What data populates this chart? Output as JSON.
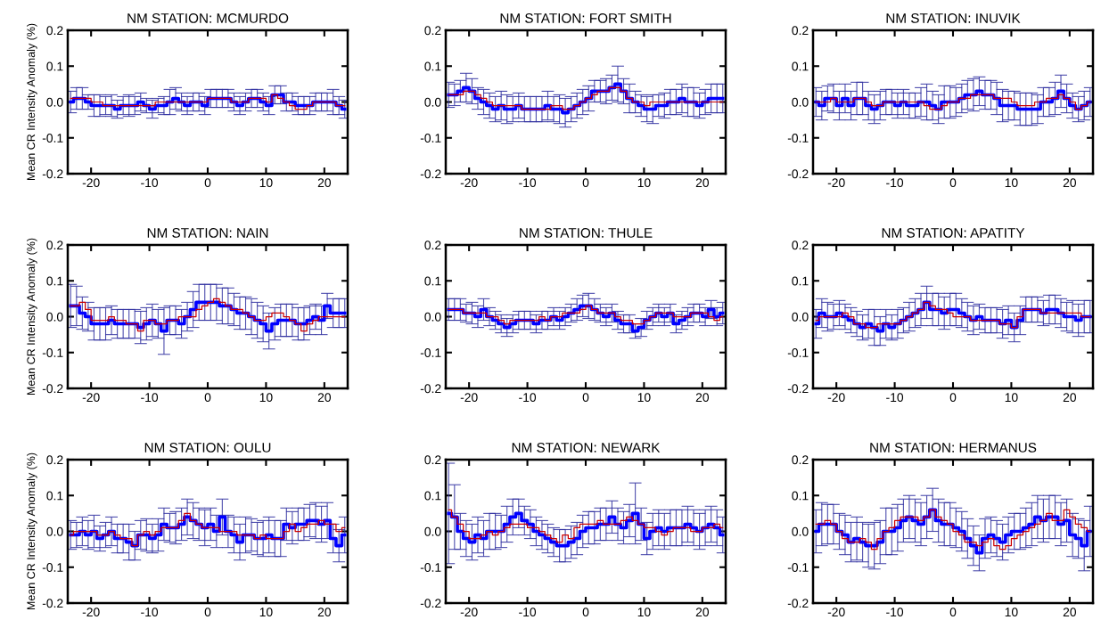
{
  "chart_data": [
    {
      "type": "step",
      "title": "NM STATION: MCMURDO",
      "ylabel": "Mean CR Intensity Anomaly (%)",
      "xlim": [
        -24,
        24
      ],
      "ylim": [
        -0.2,
        0.2
      ],
      "xticks": [
        -20,
        -10,
        0,
        10,
        20
      ],
      "yticks": [
        {
          "value": -0.2,
          "label": "-0.2"
        },
        {
          "value": -0.1,
          "label": "-0.1"
        },
        {
          "value": 0,
          "label": "0.0"
        },
        {
          "value": 0.1,
          "label": "0.1"
        },
        {
          "value": 0.2,
          "label": "0.2"
        }
      ],
      "grid": false,
      "legend": false,
      "x": [
        -23.5,
        -22.5,
        -21.5,
        -20.5,
        -19.5,
        -18.5,
        -17.5,
        -16.5,
        -15.5,
        -14.5,
        -13.5,
        -12.5,
        -11.5,
        -10.5,
        -9.5,
        -8.5,
        -7.5,
        -6.5,
        -5.5,
        -4.5,
        -3.5,
        -2.5,
        -1.5,
        -0.5,
        0.5,
        1.5,
        2.5,
        3.5,
        4.5,
        5.5,
        6.5,
        7.5,
        8.5,
        9.5,
        10.5,
        11.5,
        12.5,
        13.5,
        14.5,
        15.5,
        16.5,
        17.5,
        18.5,
        19.5,
        20.5,
        21.5,
        22.5,
        23.5
      ],
      "series": [
        {
          "color": "#0000ff",
          "values": [
            0.0,
            0.01,
            0.01,
            0.0,
            -0.01,
            -0.01,
            -0.01,
            -0.01,
            -0.02,
            -0.01,
            -0.01,
            -0.01,
            0.0,
            -0.01,
            -0.02,
            -0.01,
            -0.01,
            0.0,
            0.01,
            0.0,
            -0.01,
            0.0,
            0.0,
            -0.01,
            0.01,
            0.01,
            0.01,
            0.01,
            0.0,
            -0.01,
            0.0,
            0.01,
            0.01,
            0.0,
            -0.01,
            0.02,
            0.02,
            0.0,
            0.0,
            -0.01,
            -0.01,
            -0.01,
            0.0,
            0.0,
            0.0,
            0.0,
            -0.01,
            -0.02
          ],
          "errors": [
            0.03,
            0.03,
            0.03,
            0.02,
            0.03,
            0.03,
            0.025,
            0.03,
            0.025,
            0.025,
            0.03,
            0.025,
            0.025,
            0.02,
            0.025,
            0.02,
            0.025,
            0.035,
            0.03,
            0.025,
            0.025,
            0.025,
            0.025,
            0.025,
            0.025,
            0.025,
            0.025,
            0.025,
            0.025,
            0.025,
            0.025,
            0.025,
            0.025,
            0.025,
            0.025,
            0.025,
            0.025,
            0.025,
            0.025,
            0.025,
            0.025,
            0.025,
            0.025,
            0.025,
            0.025,
            0.035,
            0.025,
            0.025
          ]
        },
        {
          "color": "#cc0000",
          "values": [
            0.01,
            0.01,
            0.01,
            0.01,
            0.0,
            0.0,
            -0.01,
            -0.01,
            -0.01,
            -0.01,
            -0.01,
            -0.01,
            -0.01,
            -0.01,
            -0.01,
            0.0,
            0.0,
            0.0,
            0.0,
            0.0,
            0.0,
            0.0,
            0.0,
            0.0,
            0.01,
            0.01,
            0.01,
            0.01,
            0.0,
            0.0,
            0.0,
            0.01,
            0.01,
            0.01,
            0.0,
            0.02,
            0.01,
            0.0,
            -0.01,
            -0.02,
            -0.02,
            -0.01,
            0.0,
            0.0,
            0.0,
            0.0,
            -0.01,
            -0.01
          ]
        }
      ]
    },
    {
      "type": "step",
      "title": "NM STATION: FORT SMITH",
      "xlim": [
        -24,
        24
      ],
      "ylim": [
        -0.2,
        0.2
      ],
      "xticks": [
        -20,
        -10,
        0,
        10,
        20
      ],
      "yticks": [
        {
          "value": -0.2,
          "label": "-0.2"
        },
        {
          "value": -0.1,
          "label": "-0.1"
        },
        {
          "value": 0,
          "label": "0.0"
        },
        {
          "value": 0.1,
          "label": "0.1"
        },
        {
          "value": 0.2,
          "label": "0.2"
        }
      ],
      "grid": false,
      "legend": false,
      "x": [
        -23.5,
        -22.5,
        -21.5,
        -20.5,
        -19.5,
        -18.5,
        -17.5,
        -16.5,
        -15.5,
        -14.5,
        -13.5,
        -12.5,
        -11.5,
        -10.5,
        -9.5,
        -8.5,
        -7.5,
        -6.5,
        -5.5,
        -4.5,
        -3.5,
        -2.5,
        -1.5,
        -0.5,
        0.5,
        1.5,
        2.5,
        3.5,
        4.5,
        5.5,
        6.5,
        7.5,
        8.5,
        9.5,
        10.5,
        11.5,
        12.5,
        13.5,
        14.5,
        15.5,
        16.5,
        17.5,
        18.5,
        19.5,
        20.5,
        21.5,
        22.5,
        23.5
      ],
      "series": [
        {
          "color": "#0000ff",
          "values": [
            0.02,
            0.02,
            0.03,
            0.04,
            0.03,
            0.01,
            0.0,
            -0.01,
            -0.02,
            -0.01,
            -0.02,
            -0.02,
            -0.01,
            -0.02,
            -0.02,
            -0.02,
            -0.02,
            -0.01,
            -0.02,
            -0.02,
            -0.03,
            -0.02,
            -0.01,
            0.0,
            0.01,
            0.03,
            0.03,
            0.03,
            0.04,
            0.05,
            0.03,
            0.01,
            0.0,
            -0.01,
            -0.02,
            -0.02,
            -0.01,
            -0.01,
            0.0,
            0.0,
            0.01,
            0.0,
            0.0,
            -0.01,
            0.0,
            0.01,
            0.01,
            0.01
          ],
          "errors": [
            0.035,
            0.03,
            0.03,
            0.04,
            0.035,
            0.03,
            0.035,
            0.035,
            0.035,
            0.04,
            0.04,
            0.035,
            0.035,
            0.035,
            0.035,
            0.035,
            0.035,
            0.04,
            0.035,
            0.04,
            0.04,
            0.035,
            0.035,
            0.035,
            0.035,
            0.03,
            0.03,
            0.035,
            0.035,
            0.05,
            0.035,
            0.04,
            0.03,
            0.03,
            0.035,
            0.04,
            0.03,
            0.035,
            0.035,
            0.035,
            0.04,
            0.04,
            0.04,
            0.035,
            0.035,
            0.04,
            0.04,
            0.04
          ]
        },
        {
          "color": "#cc0000",
          "values": [
            0.02,
            0.02,
            0.02,
            0.03,
            0.03,
            0.02,
            0.01,
            0.0,
            -0.01,
            -0.01,
            -0.01,
            -0.01,
            -0.01,
            -0.02,
            -0.02,
            -0.02,
            -0.02,
            -0.02,
            -0.01,
            -0.01,
            -0.02,
            -0.02,
            -0.01,
            0.0,
            0.01,
            0.02,
            0.03,
            0.03,
            0.04,
            0.04,
            0.03,
            0.01,
            0.0,
            0.0,
            -0.01,
            0.0,
            0.0,
            0.0,
            0.0,
            0.0,
            0.0,
            0.0,
            0.0,
            0.0,
            0.0,
            0.0,
            0.0,
            0.0
          ]
        }
      ]
    },
    {
      "type": "step",
      "title": "NM STATION: INUVIK",
      "xlim": [
        -24,
        24
      ],
      "ylim": [
        -0.2,
        0.2
      ],
      "xticks": [
        -20,
        -10,
        0,
        10,
        20
      ],
      "yticks": [
        {
          "value": -0.2,
          "label": "-0.2"
        },
        {
          "value": -0.1,
          "label": "-0.1"
        },
        {
          "value": 0,
          "label": "0.0"
        },
        {
          "value": 0.1,
          "label": "0.1"
        },
        {
          "value": 0.2,
          "label": "0.2"
        }
      ],
      "grid": false,
      "legend": false,
      "x": [
        -23.5,
        -22.5,
        -21.5,
        -20.5,
        -19.5,
        -18.5,
        -17.5,
        -16.5,
        -15.5,
        -14.5,
        -13.5,
        -12.5,
        -11.5,
        -10.5,
        -9.5,
        -8.5,
        -7.5,
        -6.5,
        -5.5,
        -4.5,
        -3.5,
        -2.5,
        -1.5,
        -0.5,
        0.5,
        1.5,
        2.5,
        3.5,
        4.5,
        5.5,
        6.5,
        7.5,
        8.5,
        9.5,
        10.5,
        11.5,
        12.5,
        13.5,
        14.5,
        15.5,
        16.5,
        17.5,
        18.5,
        19.5,
        20.5,
        21.5,
        22.5,
        23.5
      ],
      "series": [
        {
          "color": "#0000ff",
          "values": [
            0.0,
            -0.01,
            0.01,
            0.01,
            -0.01,
            0.01,
            -0.01,
            0.01,
            0.01,
            -0.01,
            -0.02,
            -0.01,
            0.0,
            0.0,
            -0.01,
            0.0,
            -0.01,
            -0.01,
            0.0,
            0.0,
            -0.01,
            -0.02,
            0.0,
            0.0,
            0.0,
            0.01,
            0.02,
            0.02,
            0.03,
            0.02,
            0.02,
            0.01,
            -0.01,
            -0.01,
            -0.01,
            -0.02,
            -0.02,
            -0.02,
            -0.02,
            0.0,
            0.0,
            0.01,
            0.03,
            0.01,
            -0.01,
            -0.02,
            -0.01,
            0.0
          ],
          "errors": [
            0.04,
            0.04,
            0.035,
            0.04,
            0.04,
            0.04,
            0.04,
            0.045,
            0.045,
            0.04,
            0.04,
            0.04,
            0.035,
            0.035,
            0.035,
            0.035,
            0.035,
            0.035,
            0.04,
            0.05,
            0.04,
            0.04,
            0.045,
            0.045,
            0.04,
            0.04,
            0.04,
            0.045,
            0.04,
            0.04,
            0.04,
            0.045,
            0.045,
            0.04,
            0.04,
            0.045,
            0.045,
            0.045,
            0.04,
            0.04,
            0.04,
            0.045,
            0.045,
            0.04,
            0.035,
            0.035,
            0.04,
            0.04
          ]
        },
        {
          "color": "#cc0000",
          "values": [
            0.0,
            0.0,
            0.0,
            0.01,
            0.0,
            0.0,
            0.0,
            0.01,
            0.01,
            0.0,
            -0.01,
            -0.01,
            0.0,
            0.0,
            0.0,
            0.0,
            0.0,
            0.0,
            0.0,
            -0.01,
            -0.02,
            -0.02,
            -0.01,
            0.0,
            0.0,
            0.01,
            0.01,
            0.02,
            0.02,
            0.02,
            0.02,
            0.01,
            0.01,
            0.01,
            0.0,
            -0.01,
            -0.01,
            -0.01,
            0.0,
            0.0,
            0.01,
            0.01,
            0.02,
            0.01,
            0.0,
            -0.02,
            -0.01,
            0.0
          ]
        }
      ]
    },
    {
      "type": "step",
      "title": "NM STATION: NAIN",
      "ylabel": "Mean CR Intensity Anomaly (%)",
      "xlim": [
        -24,
        24
      ],
      "ylim": [
        -0.2,
        0.2
      ],
      "xticks": [
        -20,
        -10,
        0,
        10,
        20
      ],
      "yticks": [
        {
          "value": -0.2,
          "label": "-0.2"
        },
        {
          "value": -0.1,
          "label": "-0.1"
        },
        {
          "value": 0,
          "label": "0.0"
        },
        {
          "value": 0.1,
          "label": "0.1"
        },
        {
          "value": 0.2,
          "label": "0.2"
        }
      ],
      "grid": false,
      "legend": false,
      "x": [
        -23.5,
        -22.5,
        -21.5,
        -20.5,
        -19.5,
        -18.5,
        -17.5,
        -16.5,
        -15.5,
        -14.5,
        -13.5,
        -12.5,
        -11.5,
        -10.5,
        -9.5,
        -8.5,
        -7.5,
        -6.5,
        -5.5,
        -4.5,
        -3.5,
        -2.5,
        -1.5,
        -0.5,
        0.5,
        1.5,
        2.5,
        3.5,
        4.5,
        5.5,
        6.5,
        7.5,
        8.5,
        9.5,
        10.5,
        11.5,
        12.5,
        13.5,
        14.5,
        15.5,
        16.5,
        17.5,
        18.5,
        19.5,
        20.5,
        21.5,
        22.5,
        23.5
      ],
      "series": [
        {
          "color": "#0000ff",
          "values": [
            0.03,
            0.03,
            0.01,
            0.0,
            -0.02,
            -0.02,
            -0.02,
            -0.01,
            -0.02,
            -0.02,
            -0.02,
            -0.02,
            -0.03,
            -0.02,
            -0.01,
            -0.02,
            -0.04,
            -0.01,
            -0.01,
            -0.02,
            0.0,
            0.02,
            0.04,
            0.04,
            0.04,
            0.04,
            0.03,
            0.03,
            0.02,
            0.01,
            0.01,
            0.0,
            -0.01,
            -0.02,
            -0.04,
            -0.02,
            -0.01,
            -0.01,
            -0.01,
            -0.02,
            -0.02,
            -0.01,
            0.0,
            -0.01,
            0.03,
            0.01,
            0.01,
            0.01
          ],
          "errors": [
            0.06,
            0.055,
            0.045,
            0.04,
            0.045,
            0.045,
            0.045,
            0.04,
            0.04,
            0.04,
            0.04,
            0.04,
            0.045,
            0.045,
            0.045,
            0.04,
            0.065,
            0.04,
            0.04,
            0.04,
            0.04,
            0.05,
            0.05,
            0.05,
            0.05,
            0.05,
            0.05,
            0.05,
            0.045,
            0.045,
            0.045,
            0.05,
            0.05,
            0.05,
            0.05,
            0.045,
            0.045,
            0.045,
            0.045,
            0.045,
            0.045,
            0.04,
            0.035,
            0.04,
            0.035,
            0.04,
            0.04,
            0.04
          ]
        },
        {
          "color": "#cc0000",
          "values": [
            0.03,
            0.03,
            0.04,
            0.02,
            -0.01,
            -0.01,
            -0.01,
            0.0,
            -0.01,
            -0.01,
            -0.02,
            -0.02,
            -0.04,
            -0.01,
            -0.01,
            -0.02,
            -0.02,
            -0.01,
            -0.01,
            0.0,
            0.0,
            0.0,
            0.02,
            0.03,
            0.04,
            0.05,
            0.04,
            0.03,
            0.02,
            0.02,
            0.01,
            0.0,
            -0.01,
            -0.01,
            0.0,
            0.01,
            0.01,
            0.0,
            -0.01,
            -0.02,
            -0.04,
            -0.02,
            -0.01,
            0.0,
            0.0,
            0.0,
            0.0,
            0.0
          ]
        }
      ]
    },
    {
      "type": "step",
      "title": "NM STATION: THULE",
      "xlim": [
        -24,
        24
      ],
      "ylim": [
        -0.2,
        0.2
      ],
      "xticks": [
        -20,
        -10,
        0,
        10,
        20
      ],
      "yticks": [
        {
          "value": -0.2,
          "label": "-0.2"
        },
        {
          "value": -0.1,
          "label": "-0.1"
        },
        {
          "value": 0,
          "label": "0.0"
        },
        {
          "value": 0.1,
          "label": "0.1"
        },
        {
          "value": 0.2,
          "label": "0.2"
        }
      ],
      "grid": false,
      "legend": false,
      "x": [
        -23.5,
        -22.5,
        -21.5,
        -20.5,
        -19.5,
        -18.5,
        -17.5,
        -16.5,
        -15.5,
        -14.5,
        -13.5,
        -12.5,
        -11.5,
        -10.5,
        -9.5,
        -8.5,
        -7.5,
        -6.5,
        -5.5,
        -4.5,
        -3.5,
        -2.5,
        -1.5,
        -0.5,
        0.5,
        1.5,
        2.5,
        3.5,
        4.5,
        5.5,
        6.5,
        7.5,
        8.5,
        9.5,
        10.5,
        11.5,
        12.5,
        13.5,
        14.5,
        15.5,
        16.5,
        17.5,
        18.5,
        19.5,
        20.5,
        21.5,
        22.5,
        23.5
      ],
      "series": [
        {
          "color": "#0000ff",
          "values": [
            0.02,
            0.02,
            0.02,
            0.01,
            0.01,
            0.0,
            0.02,
            0.0,
            -0.01,
            -0.02,
            -0.03,
            -0.02,
            -0.01,
            -0.01,
            -0.01,
            -0.02,
            -0.01,
            -0.01,
            0.0,
            -0.01,
            0.0,
            0.01,
            0.02,
            0.03,
            0.03,
            0.02,
            0.01,
            0.0,
            0.01,
            -0.01,
            -0.02,
            -0.02,
            -0.04,
            -0.03,
            -0.01,
            0.0,
            0.01,
            0.0,
            0.01,
            -0.02,
            -0.01,
            0.0,
            0.01,
            0.01,
            0.0,
            0.02,
            0.0,
            0.01
          ],
          "errors": [
            0.03,
            0.03,
            0.03,
            0.025,
            0.03,
            0.03,
            0.03,
            0.025,
            0.025,
            0.025,
            0.025,
            0.025,
            0.025,
            0.025,
            0.025,
            0.025,
            0.025,
            0.025,
            0.025,
            0.025,
            0.025,
            0.025,
            0.03,
            0.03,
            0.035,
            0.03,
            0.025,
            0.025,
            0.025,
            0.025,
            0.025,
            0.025,
            0.02,
            0.025,
            0.025,
            0.025,
            0.025,
            0.025,
            0.025,
            0.025,
            0.025,
            0.025,
            0.025,
            0.025,
            0.025,
            0.025,
            0.025,
            0.03
          ]
        },
        {
          "color": "#cc0000",
          "values": [
            0.02,
            0.02,
            0.02,
            0.01,
            0.01,
            0.01,
            0.01,
            0.0,
            0.0,
            -0.01,
            -0.02,
            -0.01,
            -0.01,
            -0.01,
            -0.01,
            -0.01,
            0.0,
            -0.01,
            0.0,
            0.0,
            0.01,
            0.01,
            0.01,
            0.02,
            0.03,
            0.02,
            0.01,
            0.01,
            0.01,
            0.0,
            -0.01,
            -0.01,
            -0.02,
            -0.02,
            -0.01,
            0.0,
            0.01,
            0.01,
            0.01,
            0.0,
            0.0,
            0.0,
            0.01,
            0.01,
            0.01,
            0.0,
            -0.01,
            0.0
          ]
        }
      ]
    },
    {
      "type": "step",
      "title": "NM STATION: APATITY",
      "xlim": [
        -24,
        24
      ],
      "ylim": [
        -0.2,
        0.2
      ],
      "xticks": [
        -20,
        -10,
        0,
        10,
        20
      ],
      "yticks": [
        {
          "value": -0.2,
          "label": "-0.2"
        },
        {
          "value": -0.1,
          "label": "-0.1"
        },
        {
          "value": 0,
          "label": "0.0"
        },
        {
          "value": 0.1,
          "label": "0.1"
        },
        {
          "value": 0.2,
          "label": "0.2"
        }
      ],
      "grid": false,
      "legend": false,
      "x": [
        -23.5,
        -22.5,
        -21.5,
        -20.5,
        -19.5,
        -18.5,
        -17.5,
        -16.5,
        -15.5,
        -14.5,
        -13.5,
        -12.5,
        -11.5,
        -10.5,
        -9.5,
        -8.5,
        -7.5,
        -6.5,
        -5.5,
        -4.5,
        -3.5,
        -2.5,
        -1.5,
        -0.5,
        0.5,
        1.5,
        2.5,
        3.5,
        4.5,
        5.5,
        6.5,
        7.5,
        8.5,
        9.5,
        10.5,
        11.5,
        12.5,
        13.5,
        14.5,
        15.5,
        16.5,
        17.5,
        18.5,
        19.5,
        20.5,
        21.5,
        22.5,
        23.5
      ],
      "series": [
        {
          "color": "#0000ff",
          "values": [
            -0.02,
            0.01,
            0.0,
            0.0,
            0.01,
            0.0,
            -0.01,
            -0.02,
            -0.03,
            -0.02,
            -0.03,
            -0.04,
            -0.02,
            -0.03,
            -0.02,
            -0.01,
            0.0,
            0.01,
            0.02,
            0.04,
            0.02,
            0.02,
            0.01,
            0.02,
            0.02,
            0.01,
            0.0,
            -0.01,
            0.0,
            -0.01,
            -0.01,
            -0.01,
            -0.02,
            -0.01,
            -0.03,
            -0.01,
            0.02,
            0.02,
            0.02,
            0.01,
            0.02,
            0.02,
            0.01,
            0.0,
            0.0,
            -0.01,
            0.0,
            0.0
          ],
          "errors": [
            0.04,
            0.04,
            0.04,
            0.035,
            0.035,
            0.035,
            0.035,
            0.035,
            0.035,
            0.04,
            0.05,
            0.04,
            0.04,
            0.035,
            0.04,
            0.035,
            0.04,
            0.04,
            0.045,
            0.045,
            0.045,
            0.045,
            0.045,
            0.045,
            0.045,
            0.04,
            0.04,
            0.04,
            0.035,
            0.035,
            0.035,
            0.035,
            0.04,
            0.04,
            0.04,
            0.04,
            0.035,
            0.035,
            0.035,
            0.035,
            0.04,
            0.04,
            0.04,
            0.04,
            0.045,
            0.045,
            0.045,
            0.045
          ]
        },
        {
          "color": "#cc0000",
          "values": [
            -0.01,
            0.0,
            0.0,
            0.0,
            0.0,
            0.01,
            0.0,
            -0.02,
            -0.02,
            -0.03,
            -0.03,
            -0.02,
            -0.02,
            -0.02,
            -0.02,
            -0.01,
            0.0,
            0.01,
            0.02,
            0.04,
            0.03,
            0.02,
            0.02,
            0.01,
            0.0,
            0.0,
            0.0,
            -0.01,
            -0.01,
            -0.01,
            -0.01,
            -0.01,
            -0.02,
            -0.02,
            -0.03,
            0.0,
            0.02,
            0.02,
            0.02,
            0.01,
            0.01,
            0.01,
            0.01,
            0.01,
            0.01,
            0.01,
            0.0,
            0.0
          ]
        }
      ]
    },
    {
      "type": "step",
      "title": "NM STATION: OULU",
      "ylabel": "Mean CR Intensity Anomaly (%)",
      "xlim": [
        -24,
        24
      ],
      "ylim": [
        -0.2,
        0.2
      ],
      "xticks": [
        -20,
        -10,
        0,
        10,
        20
      ],
      "yticks": [
        {
          "value": -0.2,
          "label": "-0.2"
        },
        {
          "value": -0.1,
          "label": "-0.1"
        },
        {
          "value": 0,
          "label": "0.0"
        },
        {
          "value": 0.1,
          "label": "0.1"
        },
        {
          "value": 0.2,
          "label": "0.2"
        }
      ],
      "grid": false,
      "legend": false,
      "x": [
        -23.5,
        -22.5,
        -21.5,
        -20.5,
        -19.5,
        -18.5,
        -17.5,
        -16.5,
        -15.5,
        -14.5,
        -13.5,
        -12.5,
        -11.5,
        -10.5,
        -9.5,
        -8.5,
        -7.5,
        -6.5,
        -5.5,
        -4.5,
        -3.5,
        -2.5,
        -1.5,
        -0.5,
        0.5,
        1.5,
        2.5,
        3.5,
        4.5,
        5.5,
        6.5,
        7.5,
        8.5,
        9.5,
        10.5,
        11.5,
        12.5,
        13.5,
        14.5,
        15.5,
        16.5,
        17.5,
        18.5,
        19.5,
        20.5,
        21.5,
        22.5,
        23.5
      ],
      "series": [
        {
          "color": "#0000ff",
          "values": [
            -0.01,
            -0.01,
            0.0,
            -0.01,
            0.0,
            -0.02,
            -0.01,
            0.0,
            -0.02,
            -0.02,
            -0.03,
            -0.04,
            -0.01,
            -0.01,
            -0.02,
            -0.01,
            0.02,
            0.01,
            0.01,
            0.02,
            0.04,
            0.03,
            0.02,
            0.01,
            0.02,
            0.0,
            0.04,
            0.0,
            -0.01,
            -0.03,
            -0.01,
            -0.01,
            -0.02,
            -0.02,
            -0.01,
            -0.02,
            -0.02,
            0.02,
            0.01,
            0.02,
            0.02,
            0.03,
            0.03,
            0.02,
            0.03,
            -0.02,
            -0.04,
            -0.01
          ],
          "errors": [
            0.04,
            0.035,
            0.04,
            0.04,
            0.045,
            0.035,
            0.035,
            0.04,
            0.04,
            0.04,
            0.05,
            0.04,
            0.04,
            0.045,
            0.04,
            0.045,
            0.045,
            0.04,
            0.045,
            0.045,
            0.05,
            0.05,
            0.045,
            0.05,
            0.045,
            0.045,
            0.05,
            0.045,
            0.05,
            0.05,
            0.05,
            0.045,
            0.045,
            0.05,
            0.05,
            0.05,
            0.05,
            0.045,
            0.045,
            0.045,
            0.045,
            0.045,
            0.05,
            0.05,
            0.05,
            0.04,
            0.045,
            0.05
          ]
        },
        {
          "color": "#cc0000",
          "values": [
            -0.01,
            0.0,
            0.0,
            0.0,
            0.0,
            -0.01,
            -0.01,
            0.0,
            -0.01,
            -0.02,
            -0.02,
            -0.04,
            -0.01,
            0.0,
            -0.01,
            0.0,
            0.01,
            0.01,
            0.01,
            0.03,
            0.05,
            0.03,
            0.02,
            0.01,
            0.01,
            0.01,
            0.0,
            0.0,
            0.0,
            -0.01,
            -0.01,
            -0.01,
            -0.02,
            -0.01,
            -0.02,
            -0.02,
            -0.02,
            0.0,
            0.02,
            0.0,
            0.01,
            0.02,
            0.02,
            0.03,
            0.02,
            0.02,
            0.0,
            0.01
          ]
        }
      ]
    },
    {
      "type": "step",
      "title": "NM STATION: NEWARK",
      "xlim": [
        -24,
        24
      ],
      "ylim": [
        -0.2,
        0.2
      ],
      "xticks": [
        -20,
        -10,
        0,
        10,
        20
      ],
      "yticks": [
        {
          "value": -0.2,
          "label": "-0.2"
        },
        {
          "value": -0.1,
          "label": "-0.1"
        },
        {
          "value": 0,
          "label": "0.0"
        },
        {
          "value": 0.1,
          "label": "0.1"
        },
        {
          "value": 0.2,
          "label": "0.2"
        }
      ],
      "grid": false,
      "legend": false,
      "x": [
        -23.5,
        -22.5,
        -21.5,
        -20.5,
        -19.5,
        -18.5,
        -17.5,
        -16.5,
        -15.5,
        -14.5,
        -13.5,
        -12.5,
        -11.5,
        -10.5,
        -9.5,
        -8.5,
        -7.5,
        -6.5,
        -5.5,
        -4.5,
        -3.5,
        -2.5,
        -1.5,
        -0.5,
        0.5,
        1.5,
        2.5,
        3.5,
        4.5,
        5.5,
        6.5,
        7.5,
        8.5,
        9.5,
        10.5,
        11.5,
        12.5,
        13.5,
        14.5,
        15.5,
        16.5,
        17.5,
        18.5,
        19.5,
        20.5,
        21.5,
        22.5,
        23.5
      ],
      "series": [
        {
          "color": "#0000ff",
          "values": [
            0.05,
            0.04,
            0.0,
            -0.02,
            -0.03,
            -0.01,
            -0.02,
            0.0,
            0.0,
            0.0,
            0.02,
            0.04,
            0.05,
            0.03,
            0.02,
            0.0,
            -0.01,
            -0.02,
            -0.03,
            -0.04,
            -0.04,
            -0.03,
            -0.02,
            0.0,
            0.01,
            0.01,
            0.02,
            0.02,
            0.04,
            0.02,
            0.01,
            0.03,
            0.05,
            0.02,
            -0.02,
            0.0,
            0.01,
            0.0,
            0.01,
            0.01,
            0.01,
            0.02,
            0.01,
            0.0,
            0.01,
            0.02,
            0.01,
            -0.01
          ],
          "errors": [
            0.14,
            0.09,
            0.05,
            0.05,
            0.05,
            0.05,
            0.05,
            0.05,
            0.05,
            0.045,
            0.05,
            0.05,
            0.04,
            0.04,
            0.04,
            0.04,
            0.04,
            0.04,
            0.04,
            0.045,
            0.045,
            0.045,
            0.045,
            0.045,
            0.045,
            0.045,
            0.045,
            0.045,
            0.045,
            0.045,
            0.045,
            0.045,
            0.085,
            0.045,
            0.045,
            0.05,
            0.05,
            0.05,
            0.05,
            0.05,
            0.05,
            0.05,
            0.05,
            0.05,
            0.05,
            0.05,
            0.05,
            0.05
          ]
        },
        {
          "color": "#cc0000",
          "values": [
            0.06,
            0.04,
            0.02,
            0.0,
            -0.02,
            -0.02,
            -0.01,
            0.0,
            -0.01,
            0.0,
            0.01,
            0.02,
            0.02,
            0.02,
            0.01,
            0.01,
            0.0,
            -0.01,
            -0.02,
            -0.03,
            -0.01,
            -0.02,
            0.01,
            0.02,
            0.02,
            0.02,
            0.03,
            0.02,
            0.02,
            0.02,
            0.03,
            0.04,
            0.03,
            0.02,
            0.01,
            0.01,
            0.0,
            -0.01,
            0.0,
            0.01,
            0.01,
            0.01,
            0.0,
            0.0,
            0.01,
            0.01,
            0.02,
            0.01
          ]
        }
      ]
    },
    {
      "type": "step",
      "title": "NM STATION: HERMANUS",
      "xlim": [
        -24,
        24
      ],
      "ylim": [
        -0.2,
        0.2
      ],
      "xticks": [
        -20,
        -10,
        0,
        10,
        20
      ],
      "yticks": [
        {
          "value": -0.2,
          "label": "-0.2"
        },
        {
          "value": -0.1,
          "label": "-0.1"
        },
        {
          "value": 0,
          "label": "0.0"
        },
        {
          "value": 0.1,
          "label": "0.1"
        },
        {
          "value": 0.2,
          "label": "0.2"
        }
      ],
      "grid": false,
      "legend": false,
      "x": [
        -23.5,
        -22.5,
        -21.5,
        -20.5,
        -19.5,
        -18.5,
        -17.5,
        -16.5,
        -15.5,
        -14.5,
        -13.5,
        -12.5,
        -11.5,
        -10.5,
        -9.5,
        -8.5,
        -7.5,
        -6.5,
        -5.5,
        -4.5,
        -3.5,
        -2.5,
        -1.5,
        -0.5,
        0.5,
        1.5,
        2.5,
        3.5,
        4.5,
        5.5,
        6.5,
        7.5,
        8.5,
        9.5,
        10.5,
        11.5,
        12.5,
        13.5,
        14.5,
        15.5,
        16.5,
        17.5,
        18.5,
        19.5,
        20.5,
        21.5,
        22.5,
        23.5
      ],
      "series": [
        {
          "color": "#0000ff",
          "values": [
            0.0,
            0.02,
            0.02,
            0.02,
            0.0,
            -0.01,
            -0.03,
            -0.02,
            -0.03,
            -0.04,
            -0.04,
            -0.03,
            0.0,
            0.0,
            0.01,
            0.03,
            0.04,
            0.03,
            0.02,
            0.04,
            0.06,
            0.03,
            0.02,
            0.02,
            0.01,
            0.0,
            -0.02,
            -0.04,
            -0.06,
            -0.02,
            -0.01,
            -0.02,
            -0.03,
            -0.01,
            0.0,
            0.0,
            0.01,
            0.02,
            0.04,
            0.03,
            0.04,
            0.04,
            0.02,
            0.03,
            -0.01,
            -0.02,
            -0.04,
            0.0
          ],
          "errors": [
            0.06,
            0.06,
            0.055,
            0.055,
            0.05,
            0.055,
            0.055,
            0.06,
            0.055,
            0.06,
            0.065,
            0.06,
            0.065,
            0.065,
            0.065,
            0.06,
            0.06,
            0.06,
            0.06,
            0.06,
            0.06,
            0.06,
            0.06,
            0.06,
            0.055,
            0.055,
            0.055,
            0.055,
            0.05,
            0.055,
            0.05,
            0.05,
            0.05,
            0.05,
            0.05,
            0.05,
            0.055,
            0.06,
            0.06,
            0.06,
            0.06,
            0.06,
            0.06,
            0.06,
            0.06,
            0.055,
            0.07,
            0.07
          ]
        },
        {
          "color": "#cc0000",
          "values": [
            0.02,
            0.02,
            0.03,
            0.02,
            0.0,
            -0.02,
            -0.03,
            -0.03,
            -0.02,
            -0.03,
            -0.05,
            -0.02,
            0.0,
            0.01,
            0.03,
            0.04,
            0.04,
            0.04,
            0.03,
            0.04,
            0.06,
            0.04,
            0.03,
            0.02,
            0.0,
            -0.01,
            -0.03,
            -0.03,
            -0.04,
            -0.03,
            -0.02,
            -0.04,
            -0.05,
            -0.04,
            -0.02,
            -0.01,
            0.0,
            0.01,
            0.02,
            0.03,
            0.05,
            0.03,
            0.03,
            0.06,
            0.04,
            0.02,
            0.01,
            0.0
          ]
        }
      ]
    }
  ]
}
